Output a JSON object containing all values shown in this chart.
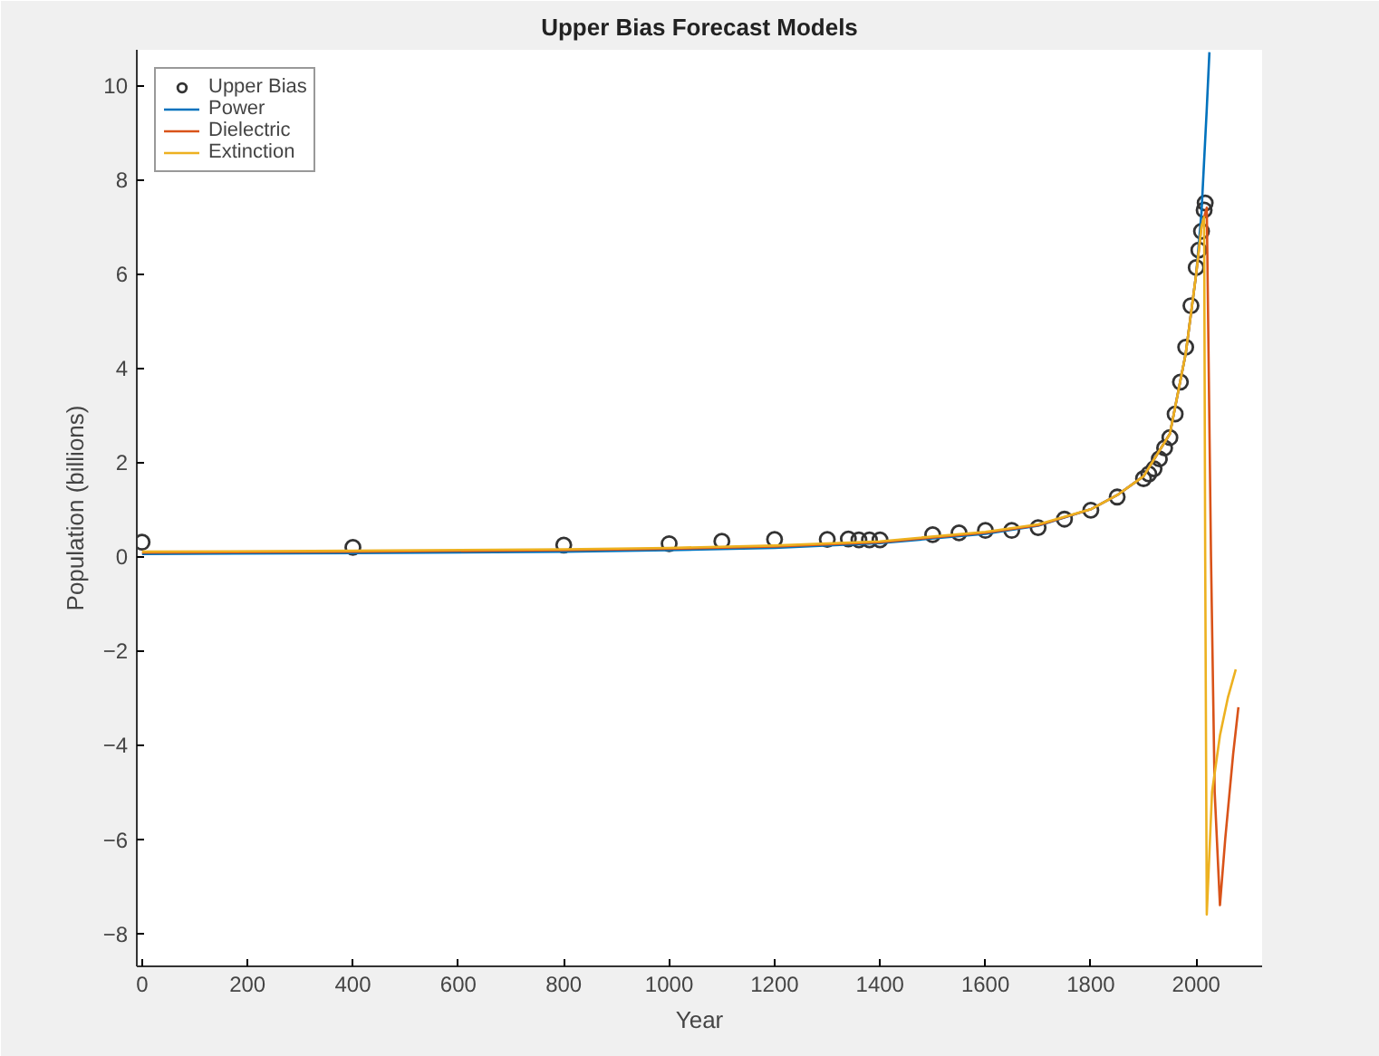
{
  "chart_data": {
    "type": "line",
    "title": "Upper Bias Forecast Models",
    "xlabel": "Year",
    "ylabel": "Population (billions)",
    "xlim": [
      -10,
      2125
    ],
    "ylim": [
      -8.7,
      10.75
    ],
    "xticks": [
      0,
      200,
      400,
      600,
      800,
      1000,
      1200,
      1400,
      1600,
      1800,
      2000
    ],
    "yticks": [
      -8,
      -6,
      -4,
      -2,
      0,
      2,
      4,
      6,
      8,
      10
    ],
    "grid": false,
    "legend": "top left",
    "series": [
      {
        "name": "Upper Bias",
        "type": "scatter",
        "marker": "circle",
        "color": "#333333",
        "x": [
          0,
          400,
          800,
          1000,
          1100,
          1200,
          1300,
          1340,
          1360,
          1380,
          1400,
          1500,
          1550,
          1600,
          1650,
          1700,
          1750,
          1800,
          1850,
          1900,
          1910,
          1920,
          1930,
          1940,
          1950,
          1960,
          1970,
          1980,
          1990,
          2000,
          2005,
          2010,
          2015,
          2017
        ],
        "values": [
          0.3,
          0.19,
          0.24,
          0.27,
          0.32,
          0.36,
          0.36,
          0.37,
          0.35,
          0.35,
          0.35,
          0.46,
          0.5,
          0.55,
          0.55,
          0.61,
          0.79,
          0.98,
          1.26,
          1.65,
          1.75,
          1.86,
          2.07,
          2.3,
          2.52,
          3.02,
          3.7,
          4.44,
          5.32,
          6.13,
          6.5,
          6.9,
          7.35,
          7.5
        ]
      },
      {
        "name": "Power",
        "color": "#0072bd",
        "x": [
          0,
          400,
          800,
          1000,
          1200,
          1400,
          1600,
          1700,
          1800,
          1850,
          1900,
          1950,
          1980,
          2000,
          2010,
          2020,
          2025
        ],
        "values": [
          0.05,
          0.07,
          0.1,
          0.13,
          0.18,
          0.28,
          0.48,
          0.65,
          1.0,
          1.3,
          1.7,
          2.6,
          4.3,
          6.0,
          7.3,
          9.5,
          10.7
        ]
      },
      {
        "name": "Dielectric",
        "color": "#d95319",
        "x": [
          0,
          400,
          800,
          1000,
          1200,
          1400,
          1600,
          1700,
          1800,
          1850,
          1900,
          1950,
          1980,
          2000,
          2010,
          2020,
          2028,
          2035,
          2045,
          2055,
          2070,
          2080
        ],
        "values": [
          0.08,
          0.1,
          0.13,
          0.16,
          0.21,
          0.3,
          0.5,
          0.66,
          1.0,
          1.3,
          1.7,
          2.6,
          4.3,
          6.0,
          7.0,
          7.4,
          0,
          -5,
          -7.4,
          -6,
          -4.2,
          -3.2
        ]
      },
      {
        "name": "Extinction",
        "color": "#edb120",
        "x": [
          0,
          400,
          800,
          1000,
          1200,
          1400,
          1600,
          1700,
          1800,
          1850,
          1900,
          1950,
          1980,
          2000,
          2010,
          2015,
          2017,
          2020,
          2030,
          2045,
          2060,
          2075
        ],
        "values": [
          0.1,
          0.12,
          0.15,
          0.18,
          0.23,
          0.32,
          0.52,
          0.68,
          1.0,
          1.3,
          1.7,
          2.6,
          4.3,
          6.0,
          7.0,
          7.2,
          0,
          -7.6,
          -5,
          -3.8,
          -3.0,
          -2.4
        ]
      }
    ]
  }
}
